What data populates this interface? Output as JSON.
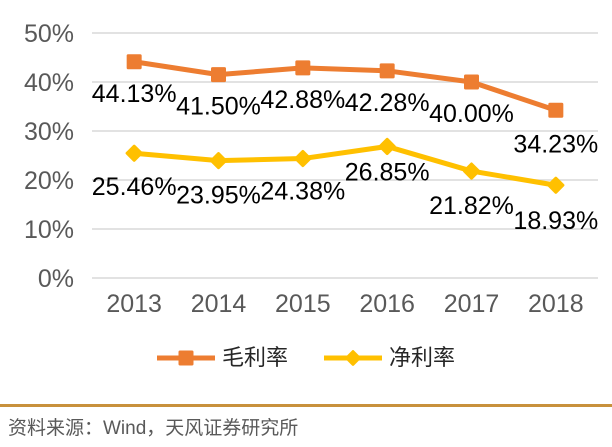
{
  "chart_data": {
    "type": "line",
    "title": "",
    "categories": [
      "2013",
      "2014",
      "2015",
      "2016",
      "2017",
      "2018"
    ],
    "series": [
      {
        "name": "毛利率",
        "marker": "square",
        "color": "#ED7D31",
        "values": [
          44.13,
          41.5,
          42.88,
          42.28,
          40.0,
          34.23
        ],
        "data_labels": [
          "44.13%",
          "41.50%",
          "42.88%",
          "42.28%",
          "40.00%",
          "34.23%"
        ]
      },
      {
        "name": "净利率",
        "marker": "diamond",
        "color": "#FFC000",
        "values": [
          25.46,
          23.95,
          24.38,
          26.85,
          21.82,
          18.93
        ],
        "data_labels": [
          "25.46%",
          "23.95%",
          "24.38%",
          "26.85%",
          "21.82%",
          "18.93%"
        ]
      }
    ],
    "ylim": [
      0,
      50
    ],
    "ytick_step": 10,
    "ytick_labels": [
      "0%",
      "10%",
      "20%",
      "30%",
      "40%",
      "50%"
    ],
    "grid": true,
    "legend_position": "bottom-center",
    "show_data_labels": true
  },
  "colors": {
    "background": "#FFFFFF",
    "grid_line": "#D9D9D9",
    "axis_text": "#595959",
    "data_label_text": "#000000",
    "legend_text": "#262626",
    "footer_divider": "#C8913C",
    "footer_text": "#595959"
  },
  "footer": {
    "source_text": "资料来源：Wind，天风证券研究所"
  }
}
